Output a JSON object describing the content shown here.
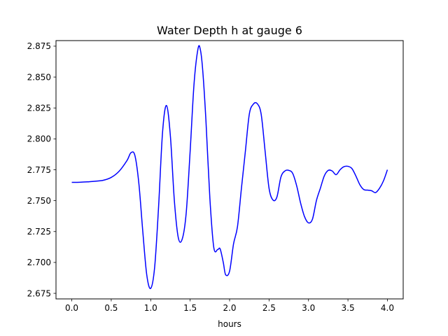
{
  "chart_data": {
    "type": "line",
    "title": "Water Depth h at gauge 6",
    "xlabel": "hours",
    "ylabel": "",
    "xlim": [
      -0.2,
      4.2
    ],
    "ylim": [
      2.6705,
      2.8795
    ],
    "grid": false,
    "x_ticks": [
      0.0,
      0.5,
      1.0,
      1.5,
      2.0,
      2.5,
      3.0,
      3.5,
      4.0
    ],
    "x_tick_labels": [
      "0.0",
      "0.5",
      "1.0",
      "1.5",
      "2.0",
      "2.5",
      "3.0",
      "3.5",
      "4.0"
    ],
    "y_ticks": [
      2.675,
      2.7,
      2.725,
      2.75,
      2.775,
      2.8,
      2.825,
      2.85,
      2.875
    ],
    "y_tick_labels": [
      "2.675",
      "2.700",
      "2.725",
      "2.750",
      "2.775",
      "2.800",
      "2.825",
      "2.850",
      "2.875"
    ],
    "series": [
      {
        "color": "#0000ff",
        "x": [
          0.0,
          0.1,
          0.2,
          0.3,
          0.4,
          0.5,
          0.6,
          0.7,
          0.75,
          0.8,
          0.85,
          0.9,
          0.95,
          1.0,
          1.05,
          1.1,
          1.15,
          1.2,
          1.25,
          1.3,
          1.35,
          1.4,
          1.45,
          1.5,
          1.55,
          1.6,
          1.63,
          1.66,
          1.7,
          1.75,
          1.8,
          1.85,
          1.88,
          1.92,
          1.95,
          2.0,
          2.05,
          2.1,
          2.15,
          2.2,
          2.25,
          2.3,
          2.35,
          2.4,
          2.45,
          2.5,
          2.55,
          2.6,
          2.65,
          2.7,
          2.75,
          2.8,
          2.85,
          2.9,
          2.95,
          3.0,
          3.05,
          3.1,
          3.15,
          3.2,
          3.25,
          3.3,
          3.35,
          3.4,
          3.45,
          3.5,
          3.55,
          3.6,
          3.65,
          3.7,
          3.75,
          3.8,
          3.85,
          3.9,
          3.95,
          4.0
        ],
        "y": [
          2.7648,
          2.7649,
          2.7652,
          2.7657,
          2.7665,
          2.7688,
          2.7738,
          2.7825,
          2.7888,
          2.7865,
          2.764,
          2.725,
          2.69,
          2.679,
          2.696,
          2.745,
          2.805,
          2.827,
          2.802,
          2.75,
          2.72,
          2.719,
          2.74,
          2.79,
          2.845,
          2.873,
          2.872,
          2.855,
          2.815,
          2.752,
          2.712,
          2.7105,
          2.711,
          2.7,
          2.69,
          2.693,
          2.715,
          2.729,
          2.76,
          2.79,
          2.82,
          2.828,
          2.8285,
          2.82,
          2.79,
          2.76,
          2.7505,
          2.753,
          2.769,
          2.774,
          2.7745,
          2.772,
          2.762,
          2.748,
          2.737,
          2.732,
          2.735,
          2.75,
          2.76,
          2.77,
          2.7745,
          2.774,
          2.771,
          2.775,
          2.7775,
          2.7778,
          2.776,
          2.77,
          2.763,
          2.759,
          2.7585,
          2.758,
          2.7565,
          2.76,
          2.766,
          2.775
        ]
      }
    ]
  }
}
